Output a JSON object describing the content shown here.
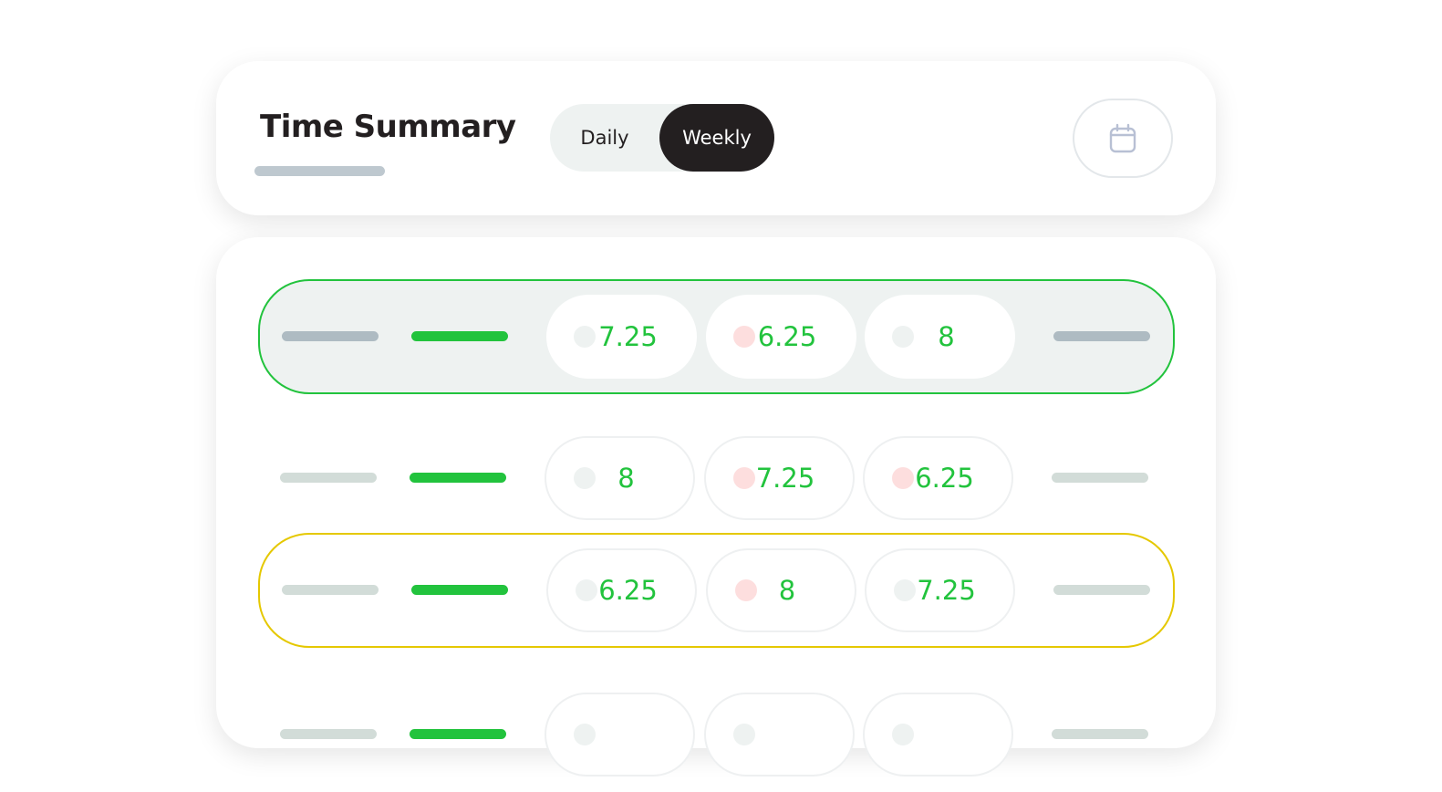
{
  "header": {
    "title": "Time Summary",
    "toggle": [
      {
        "label": "Daily",
        "active": false
      },
      {
        "label": "Weekly",
        "active": true
      }
    ],
    "calendar_icon": "calendar-icon"
  },
  "colors": {
    "accent": "#22c33d",
    "selected_border": "#22c33d",
    "warning_border": "#e5c800",
    "dot_neutral": "#eef2f1",
    "dot_alert": "#fddede",
    "dark": "#231f20"
  },
  "rows": [
    {
      "state": "selected",
      "cells": [
        {
          "value": "7.25",
          "dot": "neutral"
        },
        {
          "value": "6.25",
          "dot": "alert"
        },
        {
          "value": "8",
          "dot": "neutral"
        }
      ]
    },
    {
      "state": "plain",
      "cells": [
        {
          "value": "8",
          "dot": "neutral"
        },
        {
          "value": "7.25",
          "dot": "alert"
        },
        {
          "value": "6.25",
          "dot": "alert"
        }
      ]
    },
    {
      "state": "warning",
      "cells": [
        {
          "value": "6.25",
          "dot": "neutral"
        },
        {
          "value": "8",
          "dot": "alert"
        },
        {
          "value": "7.25",
          "dot": "neutral"
        }
      ]
    },
    {
      "state": "plain",
      "cells": [
        {
          "value": "",
          "dot": "neutral"
        },
        {
          "value": "",
          "dot": "neutral"
        },
        {
          "value": "",
          "dot": "neutral"
        }
      ]
    }
  ]
}
